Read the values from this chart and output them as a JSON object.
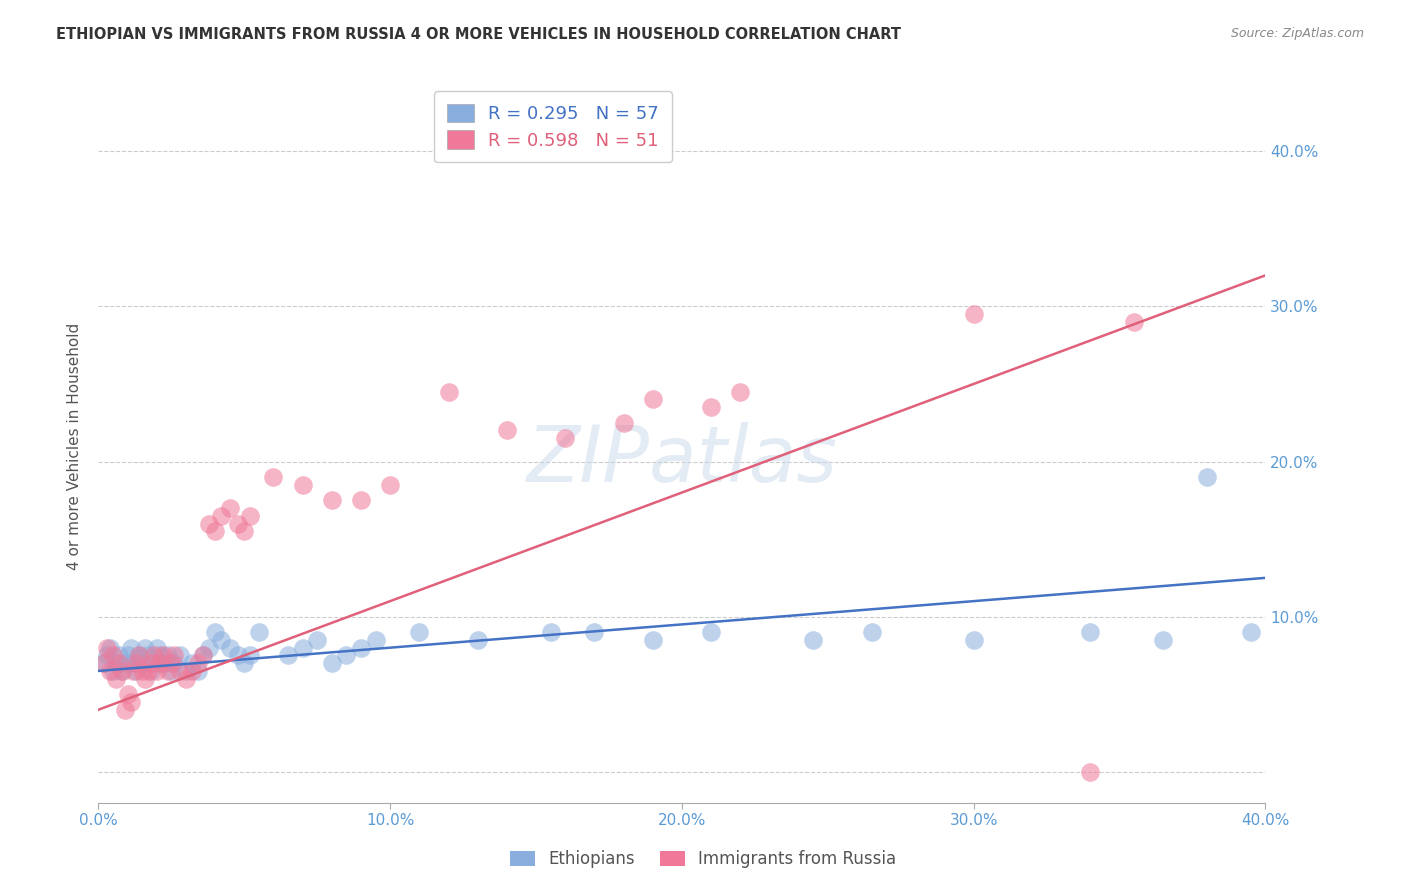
{
  "title": "ETHIOPIAN VS IMMIGRANTS FROM RUSSIA 4 OR MORE VEHICLES IN HOUSEHOLD CORRELATION CHART",
  "source": "Source: ZipAtlas.com",
  "ylabel": "4 or more Vehicles in Household",
  "xlim": [
    0.0,
    0.4
  ],
  "ylim": [
    -0.02,
    0.44
  ],
  "yticks": [
    0.0,
    0.1,
    0.2,
    0.3,
    0.4
  ],
  "xticks": [
    0.0,
    0.1,
    0.2,
    0.3,
    0.4
  ],
  "xtick_labels": [
    "0.0%",
    "10.0%",
    "20.0%",
    "30.0%",
    "40.0%"
  ],
  "right_ytick_labels": [
    "10.0%",
    "20.0%",
    "30.0%",
    "40.0%"
  ],
  "blue_color": "#89AEDD",
  "pink_color": "#F07898",
  "blue_line_color": "#4472C4",
  "pink_line_color": "#E0607A",
  "label_color": "#5B9BD5",
  "blue_scatter_x": [
    0.002,
    0.003,
    0.004,
    0.005,
    0.006,
    0.007,
    0.008,
    0.009,
    0.01,
    0.011,
    0.012,
    0.013,
    0.014,
    0.015,
    0.016,
    0.017,
    0.018,
    0.019,
    0.02,
    0.021,
    0.022,
    0.024,
    0.025,
    0.026,
    0.028,
    0.03,
    0.032,
    0.034,
    0.036,
    0.038,
    0.04,
    0.042,
    0.045,
    0.048,
    0.05,
    0.052,
    0.055,
    0.065,
    0.07,
    0.075,
    0.08,
    0.085,
    0.09,
    0.095,
    0.11,
    0.13,
    0.155,
    0.17,
    0.19,
    0.21,
    0.245,
    0.265,
    0.3,
    0.34,
    0.365,
    0.395,
    0.38
  ],
  "blue_scatter_y": [
    0.07,
    0.075,
    0.08,
    0.065,
    0.07,
    0.075,
    0.065,
    0.07,
    0.075,
    0.08,
    0.07,
    0.065,
    0.075,
    0.07,
    0.08,
    0.075,
    0.065,
    0.07,
    0.08,
    0.075,
    0.07,
    0.075,
    0.065,
    0.07,
    0.075,
    0.065,
    0.07,
    0.065,
    0.075,
    0.08,
    0.09,
    0.085,
    0.08,
    0.075,
    0.07,
    0.075,
    0.09,
    0.075,
    0.08,
    0.085,
    0.07,
    0.075,
    0.08,
    0.085,
    0.09,
    0.085,
    0.09,
    0.09,
    0.085,
    0.09,
    0.085,
    0.09,
    0.085,
    0.09,
    0.085,
    0.09,
    0.19
  ],
  "pink_scatter_x": [
    0.002,
    0.003,
    0.004,
    0.005,
    0.006,
    0.007,
    0.008,
    0.009,
    0.01,
    0.011,
    0.012,
    0.013,
    0.014,
    0.015,
    0.016,
    0.017,
    0.018,
    0.019,
    0.02,
    0.021,
    0.022,
    0.024,
    0.025,
    0.026,
    0.028,
    0.03,
    0.032,
    0.034,
    0.036,
    0.038,
    0.04,
    0.042,
    0.045,
    0.048,
    0.05,
    0.052,
    0.06,
    0.07,
    0.08,
    0.09,
    0.1,
    0.12,
    0.14,
    0.16,
    0.18,
    0.22,
    0.3,
    0.34,
    0.355,
    0.19,
    0.21
  ],
  "pink_scatter_y": [
    0.07,
    0.08,
    0.065,
    0.075,
    0.06,
    0.07,
    0.065,
    0.04,
    0.05,
    0.045,
    0.065,
    0.07,
    0.075,
    0.065,
    0.06,
    0.065,
    0.07,
    0.075,
    0.065,
    0.07,
    0.075,
    0.065,
    0.07,
    0.075,
    0.065,
    0.06,
    0.065,
    0.07,
    0.075,
    0.16,
    0.155,
    0.165,
    0.17,
    0.16,
    0.155,
    0.165,
    0.19,
    0.185,
    0.175,
    0.175,
    0.185,
    0.245,
    0.22,
    0.215,
    0.225,
    0.245,
    0.295,
    0.0,
    0.29,
    0.24,
    0.235
  ],
  "blue_line_x": [
    0.0,
    0.4
  ],
  "blue_line_y": [
    0.065,
    0.125
  ],
  "pink_line_x": [
    0.0,
    0.4
  ],
  "pink_line_y": [
    0.04,
    0.32
  ],
  "bg_color": "#FFFFFF",
  "grid_color": "#CCCCCC"
}
